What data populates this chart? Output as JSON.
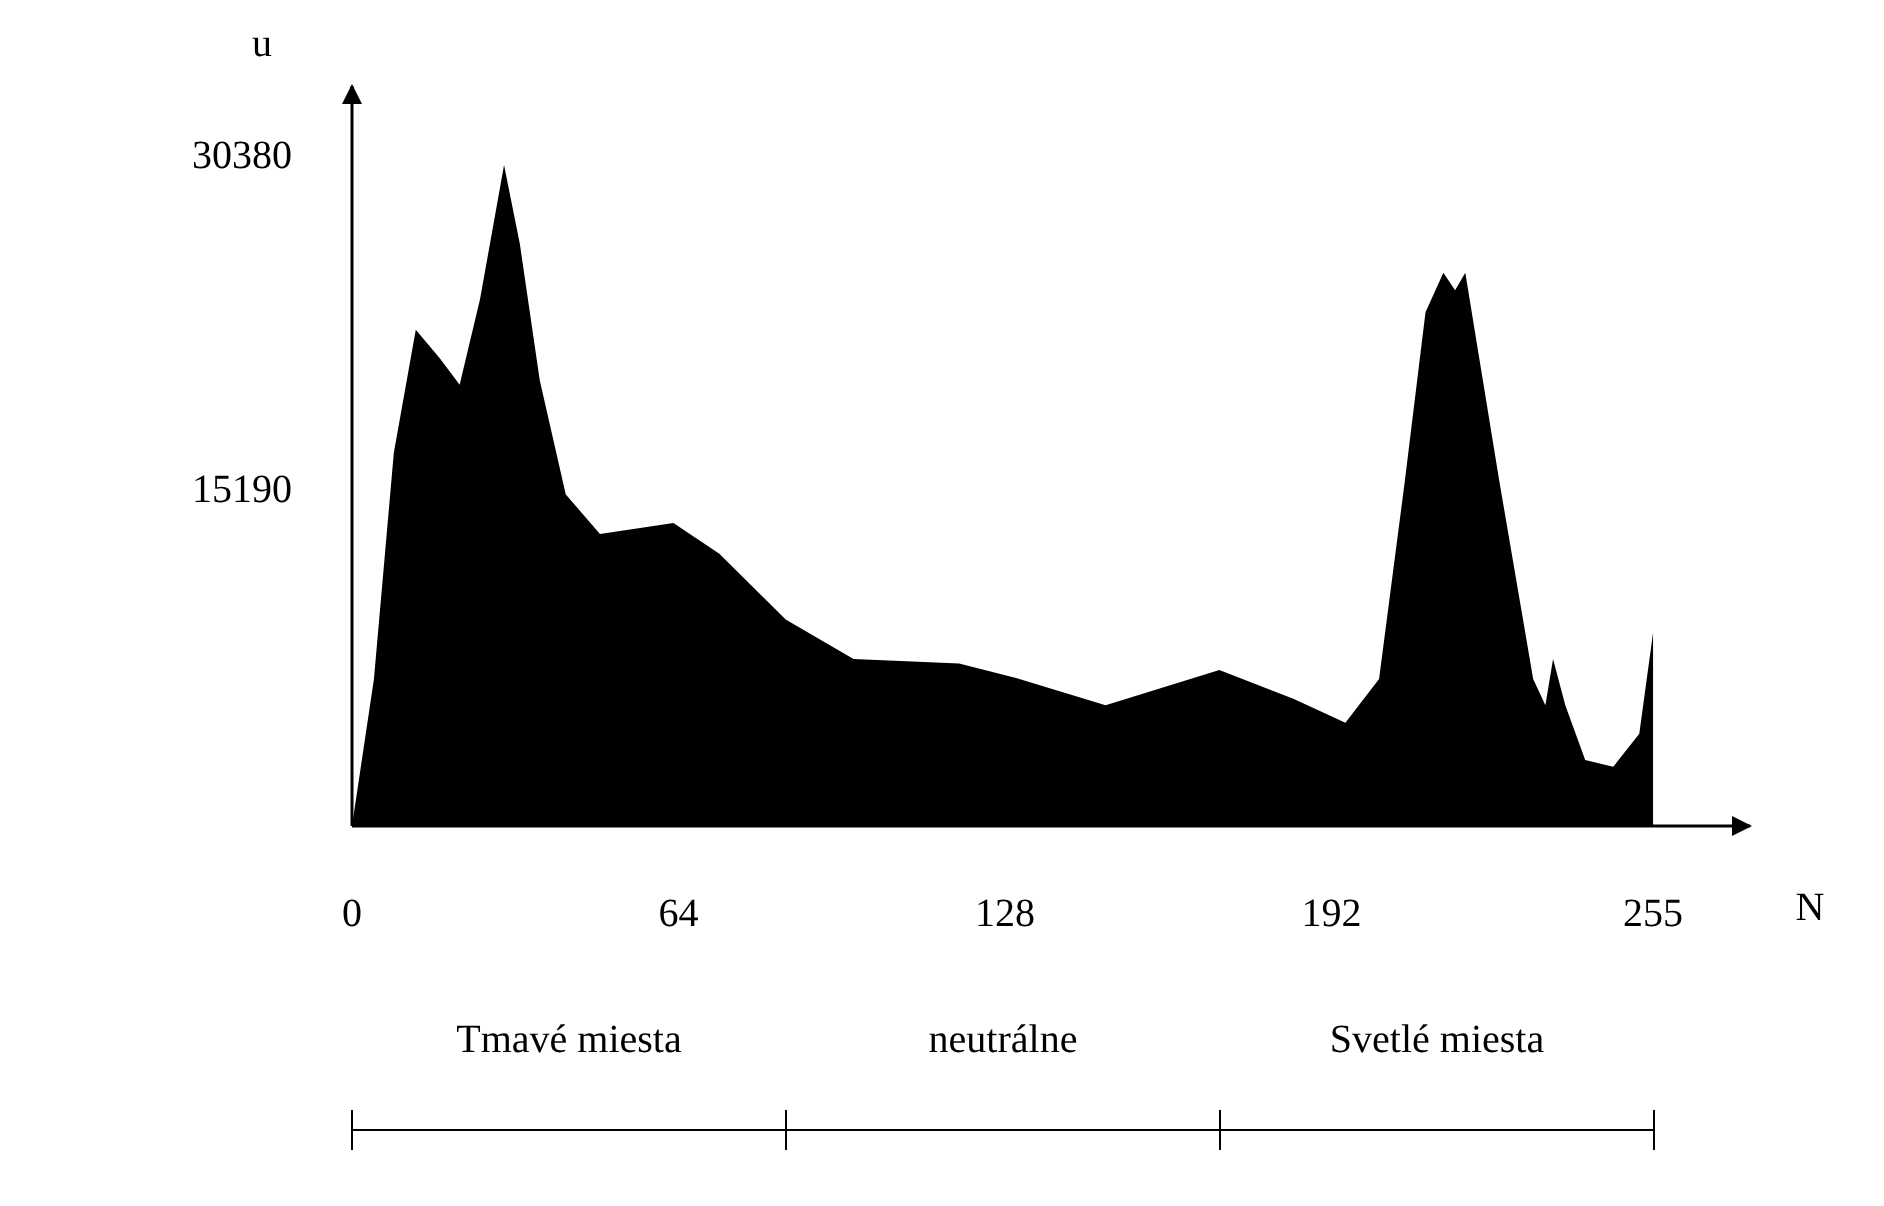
{
  "chart_data": {
    "type": "area",
    "xlabel": "N",
    "ylabel": "u",
    "xlim": [
      0,
      274
    ],
    "ylim": [
      0,
      33700
    ],
    "xticks": [
      0,
      64,
      128,
      192,
      255
    ],
    "yticks": [
      15190,
      30380
    ],
    "grid": false,
    "annotations": [
      "Tmavé miesta",
      "neutrálne",
      "Svetlé miesta"
    ],
    "series": [
      {
        "color": "#000000",
        "x": [
          0,
          4.3,
          8.2,
          12.5,
          17.2,
          21.1,
          25.1,
          29.8,
          32.9,
          36.8,
          41.9,
          48.6,
          63,
          72,
          85,
          98.3,
          119,
          130.8,
          147.7,
          170,
          184.5,
          194.7,
          201.3,
          206.4,
          210.4,
          213.9,
          216.2,
          218.2,
          224.8,
          231.5,
          233.9,
          235.4,
          237.8,
          241.7,
          247.2,
          252.3,
          255,
          255
        ],
        "values": [
          0,
          6700,
          17000,
          22600,
          21300,
          20100,
          24000,
          30100,
          26500,
          20300,
          15100,
          13300,
          13800,
          12400,
          9400,
          7600,
          7400,
          6700,
          5500,
          7100,
          5800,
          4700,
          6700,
          15800,
          23400,
          25200,
          24400,
          25200,
          15800,
          6700,
          5500,
          7600,
          5500,
          3000,
          2700,
          4200,
          8800,
          0
        ]
      }
    ]
  }
}
